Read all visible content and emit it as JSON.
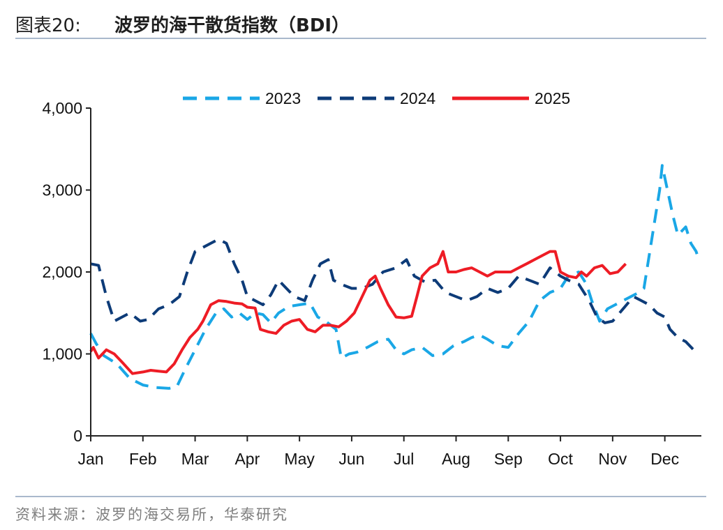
{
  "header": {
    "title_prefix": "图表20:",
    "title": "波罗的海干散货指数（BDI）"
  },
  "footer": {
    "source": "资料来源：波罗的海交易所，华泰研究"
  },
  "colors": {
    "s2023": "#1aa7e6",
    "s2024": "#0d3b78",
    "s2025": "#ee1c25"
  },
  "chart_data": {
    "type": "line",
    "title": "波罗的海干散货指数（BDI）",
    "xlabel": "",
    "ylabel": "",
    "x_unit": "month (1=Jan … 12=Dec, fractional = within month)",
    "xlim": [
      1,
      12.7
    ],
    "ylim": [
      0,
      4000
    ],
    "yticks": [
      0,
      1000,
      2000,
      3000,
      4000
    ],
    "ytick_labels": [
      "0",
      "1,000",
      "2,000",
      "3,000",
      "4,000"
    ],
    "month_labels": [
      "Jan",
      "Feb",
      "Mar",
      "Apr",
      "May",
      "Jun",
      "Jul",
      "Aug",
      "Sep",
      "Oct",
      "Nov",
      "Dec"
    ],
    "legend_position": "top-center",
    "grid": false,
    "series": [
      {
        "name": "2023",
        "style": "dashed",
        "points": [
          [
            1.0,
            1250
          ],
          [
            1.1,
            1130
          ],
          [
            1.25,
            980
          ],
          [
            1.5,
            880
          ],
          [
            1.75,
            700
          ],
          [
            2.0,
            620
          ],
          [
            2.25,
            590
          ],
          [
            2.5,
            580
          ],
          [
            2.65,
            600
          ],
          [
            2.8,
            800
          ],
          [
            3.0,
            1050
          ],
          [
            3.2,
            1300
          ],
          [
            3.4,
            1500
          ],
          [
            3.55,
            1550
          ],
          [
            3.7,
            1450
          ],
          [
            3.85,
            1500
          ],
          [
            4.0,
            1420
          ],
          [
            4.15,
            1500
          ],
          [
            4.3,
            1480
          ],
          [
            4.45,
            1380
          ],
          [
            4.6,
            1500
          ],
          [
            4.8,
            1580
          ],
          [
            5.0,
            1600
          ],
          [
            5.2,
            1620
          ],
          [
            5.35,
            1450
          ],
          [
            5.5,
            1400
          ],
          [
            5.7,
            1300
          ],
          [
            5.8,
            950
          ],
          [
            5.95,
            1000
          ],
          [
            6.1,
            1020
          ],
          [
            6.3,
            1080
          ],
          [
            6.5,
            1150
          ],
          [
            6.7,
            1180
          ],
          [
            6.85,
            1050
          ],
          [
            7.0,
            1000
          ],
          [
            7.15,
            1050
          ],
          [
            7.35,
            1080
          ],
          [
            7.55,
            980
          ],
          [
            7.75,
            1000
          ],
          [
            7.95,
            1100
          ],
          [
            8.15,
            1150
          ],
          [
            8.3,
            1200
          ],
          [
            8.45,
            1230
          ],
          [
            8.6,
            1180
          ],
          [
            8.8,
            1100
          ],
          [
            9.0,
            1080
          ],
          [
            9.2,
            1250
          ],
          [
            9.4,
            1400
          ],
          [
            9.6,
            1650
          ],
          [
            9.8,
            1750
          ],
          [
            10.0,
            1800
          ],
          [
            10.15,
            1950
          ],
          [
            10.35,
            2000
          ],
          [
            10.5,
            1850
          ],
          [
            10.6,
            1650
          ],
          [
            10.75,
            1400
          ],
          [
            10.9,
            1550
          ],
          [
            11.05,
            1600
          ],
          [
            11.2,
            1650
          ],
          [
            11.35,
            1700
          ],
          [
            11.5,
            1750
          ],
          [
            11.6,
            1800
          ],
          [
            11.7,
            2200
          ],
          [
            11.8,
            2600
          ],
          [
            11.9,
            3000
          ],
          [
            11.95,
            3300
          ],
          [
            12.05,
            3000
          ],
          [
            12.15,
            2700
          ],
          [
            12.25,
            2450
          ],
          [
            12.4,
            2550
          ],
          [
            12.5,
            2350
          ],
          [
            12.6,
            2250
          ],
          [
            12.65,
            2150
          ]
        ]
      },
      {
        "name": "2024",
        "style": "dashed",
        "points": [
          [
            1.0,
            2100
          ],
          [
            1.15,
            2080
          ],
          [
            1.3,
            1700
          ],
          [
            1.45,
            1400
          ],
          [
            1.6,
            1450
          ],
          [
            1.75,
            1500
          ],
          [
            1.95,
            1400
          ],
          [
            2.1,
            1420
          ],
          [
            2.3,
            1550
          ],
          [
            2.5,
            1600
          ],
          [
            2.7,
            1700
          ],
          [
            2.85,
            2000
          ],
          [
            3.0,
            2250
          ],
          [
            3.15,
            2300
          ],
          [
            3.3,
            2350
          ],
          [
            3.45,
            2400
          ],
          [
            3.6,
            2350
          ],
          [
            3.75,
            2100
          ],
          [
            3.9,
            1900
          ],
          [
            4.0,
            1700
          ],
          [
            4.15,
            1650
          ],
          [
            4.3,
            1600
          ],
          [
            4.45,
            1720
          ],
          [
            4.6,
            1900
          ],
          [
            4.75,
            1800
          ],
          [
            4.9,
            1700
          ],
          [
            5.1,
            1650
          ],
          [
            5.25,
            1900
          ],
          [
            5.4,
            2100
          ],
          [
            5.55,
            2150
          ],
          [
            5.65,
            1900
          ],
          [
            5.8,
            1850
          ],
          [
            6.0,
            1800
          ],
          [
            6.2,
            1800
          ],
          [
            6.4,
            1850
          ],
          [
            6.6,
            2000
          ],
          [
            6.85,
            2050
          ],
          [
            7.05,
            2150
          ],
          [
            7.2,
            1950
          ],
          [
            7.4,
            1880
          ],
          [
            7.6,
            1900
          ],
          [
            7.8,
            1750
          ],
          [
            8.0,
            1700
          ],
          [
            8.2,
            1650
          ],
          [
            8.4,
            1700
          ],
          [
            8.6,
            1800
          ],
          [
            8.8,
            1750
          ],
          [
            9.0,
            1800
          ],
          [
            9.2,
            1950
          ],
          [
            9.4,
            1900
          ],
          [
            9.6,
            1850
          ],
          [
            9.8,
            2050
          ],
          [
            10.0,
            1950
          ],
          [
            10.15,
            1900
          ],
          [
            10.35,
            1850
          ],
          [
            10.55,
            1650
          ],
          [
            10.7,
            1450
          ],
          [
            10.85,
            1380
          ],
          [
            11.0,
            1400
          ],
          [
            11.2,
            1550
          ],
          [
            11.4,
            1700
          ],
          [
            11.55,
            1650
          ],
          [
            11.7,
            1600
          ],
          [
            11.85,
            1500
          ],
          [
            12.0,
            1450
          ],
          [
            12.1,
            1300
          ],
          [
            12.25,
            1200
          ],
          [
            12.4,
            1150
          ],
          [
            12.55,
            1050
          ]
        ]
      },
      {
        "name": "2025",
        "style": "solid",
        "points": [
          [
            1.0,
            1030
          ],
          [
            1.05,
            1080
          ],
          [
            1.15,
            950
          ],
          [
            1.3,
            1050
          ],
          [
            1.45,
            1000
          ],
          [
            1.6,
            900
          ],
          [
            1.8,
            760
          ],
          [
            2.0,
            780
          ],
          [
            2.15,
            800
          ],
          [
            2.3,
            790
          ],
          [
            2.45,
            780
          ],
          [
            2.6,
            880
          ],
          [
            2.75,
            1050
          ],
          [
            2.9,
            1200
          ],
          [
            3.05,
            1300
          ],
          [
            3.15,
            1400
          ],
          [
            3.3,
            1600
          ],
          [
            3.45,
            1650
          ],
          [
            3.6,
            1640
          ],
          [
            3.75,
            1620
          ],
          [
            3.9,
            1610
          ],
          [
            4.0,
            1570
          ],
          [
            4.15,
            1560
          ],
          [
            4.25,
            1300
          ],
          [
            4.4,
            1270
          ],
          [
            4.55,
            1250
          ],
          [
            4.7,
            1350
          ],
          [
            4.85,
            1400
          ],
          [
            5.0,
            1420
          ],
          [
            5.15,
            1300
          ],
          [
            5.3,
            1270
          ],
          [
            5.45,
            1350
          ],
          [
            5.6,
            1350
          ],
          [
            5.75,
            1330
          ],
          [
            5.9,
            1400
          ],
          [
            6.05,
            1500
          ],
          [
            6.2,
            1700
          ],
          [
            6.35,
            1900
          ],
          [
            6.45,
            1950
          ],
          [
            6.55,
            1800
          ],
          [
            6.7,
            1600
          ],
          [
            6.85,
            1450
          ],
          [
            7.0,
            1440
          ],
          [
            7.15,
            1460
          ],
          [
            7.25,
            1700
          ],
          [
            7.35,
            1950
          ],
          [
            7.5,
            2050
          ],
          [
            7.65,
            2100
          ],
          [
            7.75,
            2250
          ],
          [
            7.85,
            2000
          ],
          [
            8.0,
            2000
          ],
          [
            8.15,
            2030
          ],
          [
            8.3,
            2050
          ],
          [
            8.45,
            2000
          ],
          [
            8.6,
            1950
          ],
          [
            8.75,
            2000
          ],
          [
            8.9,
            2000
          ],
          [
            9.05,
            2000
          ],
          [
            9.2,
            2050
          ],
          [
            9.35,
            2100
          ],
          [
            9.5,
            2150
          ],
          [
            9.65,
            2200
          ],
          [
            9.8,
            2250
          ],
          [
            9.9,
            2250
          ],
          [
            10.0,
            2000
          ],
          [
            10.15,
            1950
          ],
          [
            10.3,
            1930
          ],
          [
            10.4,
            2000
          ],
          [
            10.5,
            1950
          ],
          [
            10.65,
            2050
          ],
          [
            10.8,
            2080
          ],
          [
            10.95,
            1980
          ],
          [
            11.1,
            2000
          ],
          [
            11.25,
            2100
          ]
        ]
      }
    ]
  }
}
